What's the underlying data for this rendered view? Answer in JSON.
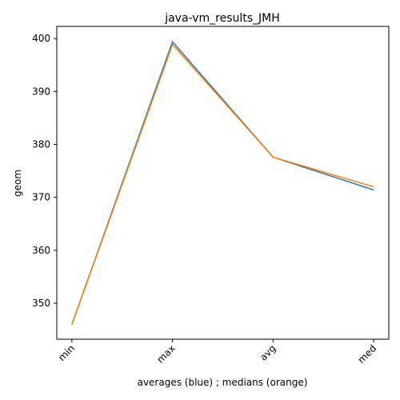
{
  "chart_data": {
    "type": "line",
    "title": "java-vm_results_JMH",
    "xlabel": "averages (blue) ; medians (orange)",
    "ylabel": "geom",
    "categories": [
      "min",
      "max",
      "avg",
      "med"
    ],
    "ylim": [
      343.2,
      402.3
    ],
    "yticks": [
      350,
      360,
      370,
      380,
      390,
      400
    ],
    "ytick_labels": [
      "350",
      "360",
      "370",
      "380",
      "390",
      "400"
    ],
    "grid": false,
    "legend": "none",
    "series": [
      {
        "color": "#1f77b4",
        "values": [
          346.0,
          399.4,
          377.6,
          371.4
        ]
      },
      {
        "color": "#ff7f0e",
        "values": [
          346.0,
          398.9,
          377.6,
          372.0
        ]
      }
    ]
  }
}
